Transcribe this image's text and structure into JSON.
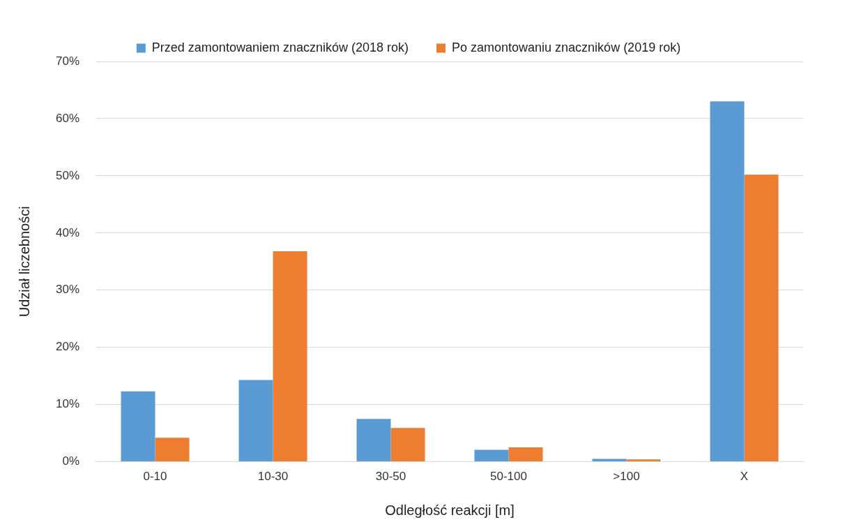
{
  "chart_data": {
    "type": "bar",
    "xlabel": "Odległość reakcji [m]",
    "ylabel": "Udział liczebności",
    "categories": [
      "0-10",
      "10-30",
      "30-50",
      "50-100",
      ">100",
      "X"
    ],
    "series": [
      {
        "name": "Przed zamontowaniem znaczników (2018 rok)",
        "color": "#5b9bd5",
        "values": [
          12.3,
          14.3,
          7.5,
          2.1,
          0.5,
          63.0
        ]
      },
      {
        "name": "Po zamontowaniu znaczników (2019 rok)",
        "color": "#ed7d31",
        "values": [
          4.2,
          36.8,
          5.9,
          2.5,
          0.4,
          50.2
        ]
      }
    ],
    "ylim": [
      0,
      70
    ],
    "yticks": [
      {
        "value": 0,
        "label": "0%"
      },
      {
        "value": 10,
        "label": "10%"
      },
      {
        "value": 20,
        "label": "20%"
      },
      {
        "value": 30,
        "label": "30%"
      },
      {
        "value": 40,
        "label": "40%"
      },
      {
        "value": 50,
        "label": "50%"
      },
      {
        "value": 60,
        "label": "60%"
      },
      {
        "value": 70,
        "label": "70%"
      }
    ],
    "grid": "y",
    "legend": "top"
  }
}
